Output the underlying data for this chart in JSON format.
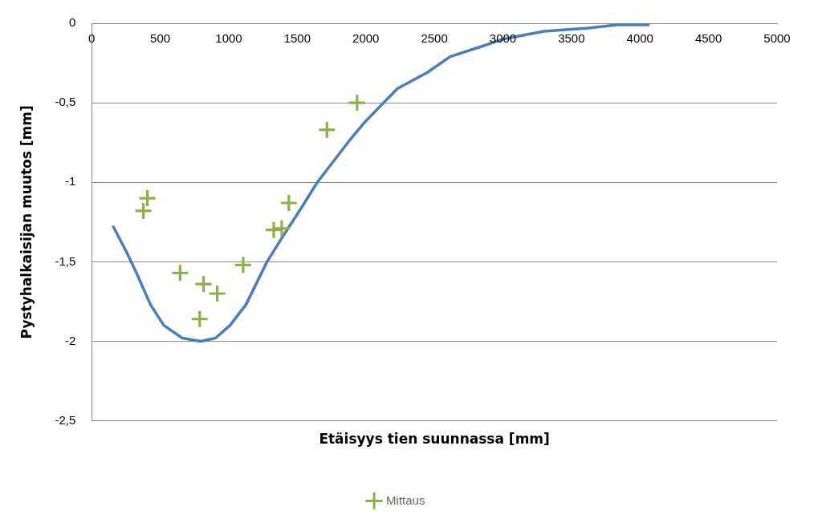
{
  "chart_data": {
    "type": "scatter",
    "xlabel": "Etäisyys tien suunnassa [mm]",
    "ylabel": "Pystyhalkaisijan muutos [mm]",
    "xlim": [
      0,
      5000
    ],
    "xticks": [
      0,
      500,
      1000,
      1500,
      2000,
      2500,
      3000,
      3500,
      4000,
      4500,
      5000
    ],
    "ylim": [
      -2.5,
      0
    ],
    "yticks": [
      {
        "value": -2.5,
        "label": "-2,5"
      },
      -2,
      {
        "value": -1.5,
        "label": "-1,5"
      },
      -1,
      {
        "value": -0.5,
        "label": "-0,5"
      },
      0
    ],
    "grid": "y",
    "legend": "bottom",
    "series": [
      {
        "name": "Mittaus",
        "marker": "cross",
        "color": "#8db04a",
        "x": [
          377,
          406,
          645,
          816,
          788,
          916,
          1105,
          1328,
          1386,
          1438,
          1716,
          1936
        ],
        "values": [
          -1.18,
          -1.1,
          -1.57,
          -1.64,
          -1.86,
          -1.7,
          -1.52,
          -1.3,
          -1.29,
          -1.13,
          -0.67,
          -0.5
        ]
      },
      {
        "type": "line",
        "marker": "none",
        "color": "#4a7ebb",
        "x": [
          158,
          255,
          332,
          429,
          526,
          661,
          796,
          903,
          1009,
          1125,
          1279,
          1395,
          1530,
          1646,
          1762,
          1878,
          1994,
          2129,
          2232,
          2447,
          2615,
          2829,
          3000,
          3300,
          3622,
          3836,
          4061
        ],
        "values": [
          -1.28,
          -1.44,
          -1.58,
          -1.77,
          -1.9,
          -1.98,
          -2.0,
          -1.98,
          -1.9,
          -1.77,
          -1.5,
          -1.34,
          -1.16,
          -1.0,
          -0.87,
          -0.74,
          -0.62,
          -0.5,
          -0.41,
          -0.31,
          -0.21,
          -0.15,
          -0.1,
          -0.05,
          -0.03,
          -0.01,
          -0.01
        ]
      }
    ]
  }
}
